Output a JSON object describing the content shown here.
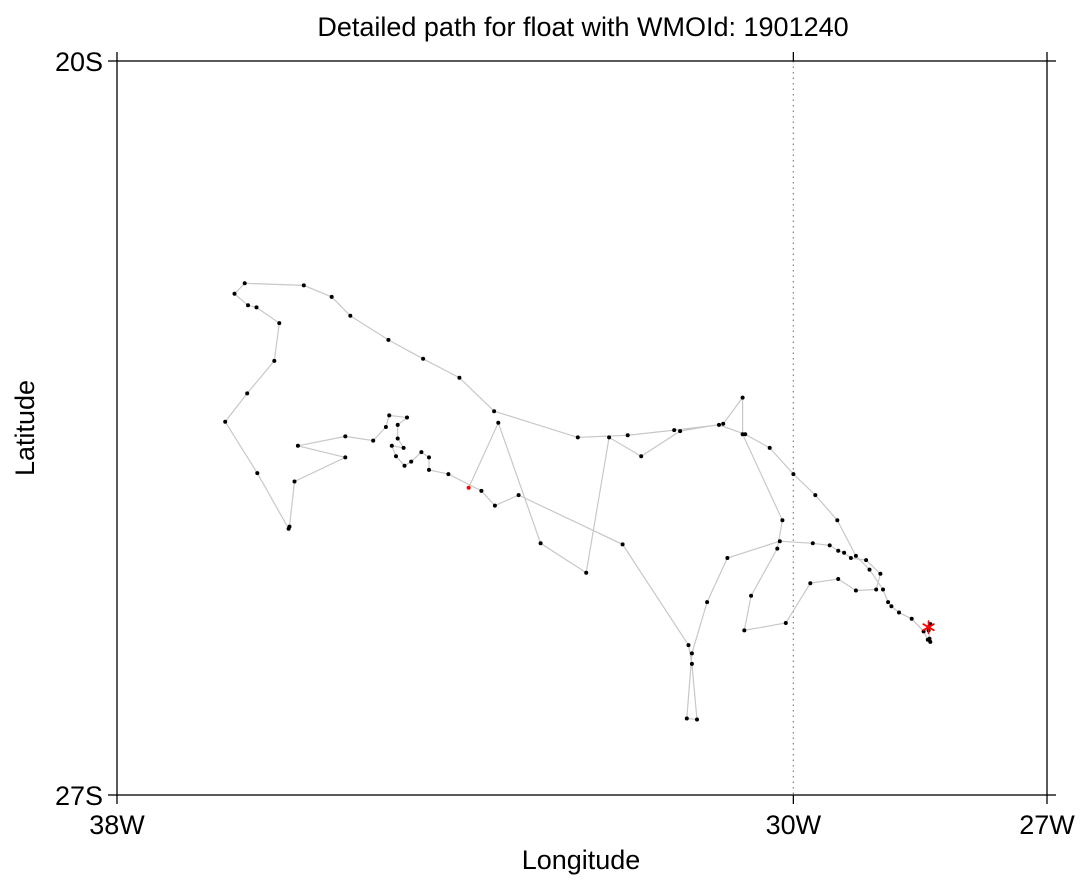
{
  "chart_data": {
    "type": "scatter",
    "title": "Detailed path for float with WMOId: 1901240",
    "xlabel": "Longitude",
    "ylabel": "Latitude",
    "xlim": [
      -38,
      -27
    ],
    "ylim": [
      -27,
      -20
    ],
    "x_ticks": [
      {
        "value": -38,
        "label": "38W"
      },
      {
        "value": -30,
        "label": "30W"
      },
      {
        "value": -27,
        "label": "27W"
      }
    ],
    "y_ticks": [
      {
        "value": -20,
        "label": "20S"
      },
      {
        "value": -27,
        "label": "27S"
      }
    ],
    "grid": false,
    "reference_line": {
      "x": -30,
      "style": "dotted",
      "color": "#888888"
    },
    "colors": {
      "track_line": "#c8c8c8",
      "profile_point": "#000000",
      "first_profile": "#ff0000",
      "last_position_marker": "#ff0000"
    },
    "series": [
      {
        "points": [
          [
            -33.84,
            -24.07
          ],
          [
            -33.49,
            -23.45
          ],
          [
            -32.99,
            -24.6
          ],
          [
            -32.45,
            -24.88
          ],
          [
            -32.18,
            -23.59
          ],
          [
            -31.8,
            -23.77
          ],
          [
            -31.34,
            -23.53
          ],
          [
            -30.83,
            -23.46
          ],
          [
            -30.6,
            -23.21
          ],
          [
            -30.6,
            -23.56
          ],
          [
            -30.13,
            -24.38
          ],
          [
            -30.19,
            -24.65
          ],
          [
            -30.5,
            -25.1
          ],
          [
            -30.58,
            -25.43
          ],
          [
            -30.09,
            -25.36
          ],
          [
            -29.8,
            -24.98
          ],
          [
            -29.47,
            -24.94
          ],
          [
            -29.26,
            -25.05
          ],
          [
            -29.02,
            -25.04
          ],
          [
            -28.97,
            -24.89
          ],
          [
            -29.14,
            -24.76
          ],
          [
            -29.32,
            -24.74
          ],
          [
            -29.4,
            -24.69
          ],
          [
            -29.47,
            -24.67
          ],
          [
            -29.57,
            -24.62
          ],
          [
            -29.77,
            -24.6
          ],
          [
            -30.16,
            -24.58
          ],
          [
            -30.78,
            -24.74
          ],
          [
            -31.02,
            -25.16
          ],
          [
            -31.2,
            -25.65
          ],
          [
            -31.26,
            -26.27
          ],
          [
            -31.14,
            -26.28
          ],
          [
            -31.2,
            -25.75
          ],
          [
            -31.24,
            -25.57
          ],
          [
            -32.02,
            -24.61
          ],
          [
            -33.25,
            -24.14
          ],
          [
            -33.53,
            -24.24
          ],
          [
            -33.69,
            -24.1
          ],
          [
            -34.08,
            -23.94
          ],
          [
            -34.31,
            -23.9
          ],
          [
            -34.31,
            -23.78
          ],
          [
            -34.4,
            -23.73
          ],
          [
            -34.52,
            -23.82
          ],
          [
            -34.6,
            -23.86
          ],
          [
            -34.7,
            -23.77
          ],
          [
            -34.75,
            -23.67
          ],
          [
            -34.61,
            -23.69
          ],
          [
            -34.68,
            -23.6
          ],
          [
            -34.68,
            -23.47
          ],
          [
            -34.57,
            -23.4
          ],
          [
            -34.78,
            -23.38
          ],
          [
            -34.82,
            -23.49
          ],
          [
            -34.97,
            -23.62
          ],
          [
            -35.3,
            -23.58
          ],
          [
            -35.86,
            -23.67
          ],
          [
            -35.3,
            -23.78
          ],
          [
            -35.9,
            -24.01
          ],
          [
            -35.96,
            -24.44
          ],
          [
            -35.97,
            -24.46
          ],
          [
            -36.34,
            -23.93
          ],
          [
            -36.72,
            -23.44
          ],
          [
            -36.46,
            -23.17
          ],
          [
            -36.14,
            -22.86
          ],
          [
            -36.08,
            -22.5
          ],
          [
            -36.35,
            -22.35
          ],
          [
            -36.45,
            -22.33
          ],
          [
            -36.61,
            -22.22
          ],
          [
            -36.49,
            -22.12
          ],
          [
            -35.79,
            -22.14
          ],
          [
            -35.46,
            -22.25
          ],
          [
            -35.24,
            -22.43
          ],
          [
            -34.79,
            -22.66
          ],
          [
            -34.38,
            -22.84
          ],
          [
            -33.95,
            -23.02
          ],
          [
            -33.54,
            -23.34
          ],
          [
            -32.55,
            -23.59
          ],
          [
            -31.96,
            -23.57
          ],
          [
            -31.41,
            -23.52
          ],
          [
            -30.88,
            -23.47
          ],
          [
            -30.57,
            -23.56
          ],
          [
            -30.28,
            -23.69
          ],
          [
            -30.0,
            -23.94
          ],
          [
            -29.74,
            -24.14
          ],
          [
            -29.48,
            -24.38
          ],
          [
            -29.26,
            -24.72
          ],
          [
            -29.1,
            -24.85
          ],
          [
            -28.94,
            -25.04
          ],
          [
            -28.88,
            -25.16
          ],
          [
            -28.84,
            -25.2
          ],
          [
            -28.75,
            -25.26
          ],
          [
            -28.6,
            -25.32
          ],
          [
            -28.46,
            -25.44
          ],
          [
            -28.41,
            -25.52
          ],
          [
            -28.38,
            -25.54
          ],
          [
            -28.39,
            -25.51
          ],
          [
            -28.4,
            -25.43
          ],
          [
            -28.38,
            -25.37
          ],
          [
            -28.4,
            -25.4
          ]
        ]
      }
    ],
    "first_point_index": 0,
    "last_position": [
      -28.4,
      -25.4
    ]
  }
}
